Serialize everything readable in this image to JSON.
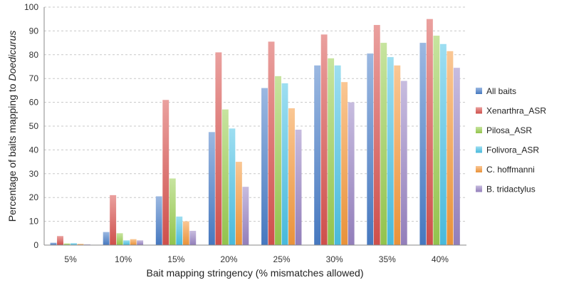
{
  "chart_data": {
    "type": "bar",
    "xlabel": "Bait mapping stringency (% mismatches allowed)",
    "ylabel_prefix": "Percentage of baits mapping to ",
    "ylabel_italic": "Doedicurus",
    "ylim": [
      0,
      100
    ],
    "yticks": [
      0,
      10,
      20,
      30,
      40,
      50,
      60,
      70,
      80,
      90,
      100
    ],
    "grid": "horizontal dashed",
    "legend_position": "right",
    "categories": [
      "5%",
      "10%",
      "15%",
      "20%",
      "25%",
      "30%",
      "35%",
      "40%"
    ],
    "series": [
      {
        "name": "All baits",
        "color": "#4a7ec9",
        "values": [
          1.0,
          5.5,
          20.5,
          47.5,
          66.0,
          75.5,
          80.5,
          85.0
        ]
      },
      {
        "name": "Xenarthra_ASR",
        "color": "#d9534f",
        "values": [
          3.8,
          21.0,
          61.0,
          81.0,
          85.5,
          88.5,
          92.5,
          95.0
        ]
      },
      {
        "name": "Pilosa_ASR",
        "color": "#9acd50",
        "values": [
          0.7,
          5.0,
          28.0,
          57.0,
          71.0,
          78.5,
          85.0,
          88.0
        ]
      },
      {
        "name": "Folivora_ASR",
        "color": "#4cc3e6",
        "values": [
          0.8,
          2.0,
          12.0,
          49.0,
          68.0,
          75.5,
          79.0,
          84.5
        ]
      },
      {
        "name": "C. hoffmanni",
        "color": "#f59a3c",
        "values": [
          0.5,
          2.5,
          10.0,
          35.0,
          57.5,
          68.5,
          75.5,
          81.5
        ]
      },
      {
        "name": "B. tridactylus",
        "color": "#9a85c4",
        "values": [
          0.3,
          2.0,
          6.0,
          24.5,
          48.5,
          60.0,
          69.0,
          74.5
        ]
      }
    ]
  }
}
